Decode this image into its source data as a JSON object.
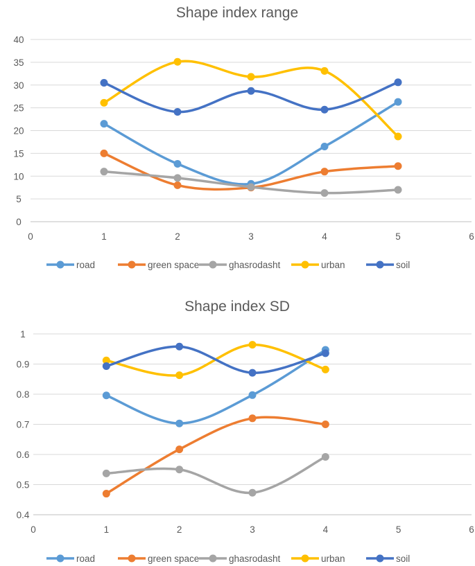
{
  "chart_data": [
    {
      "type": "scatter",
      "title": "Shape index range",
      "xlabel": "",
      "ylabel": "",
      "xlim": [
        0,
        6
      ],
      "ylim": [
        0,
        40
      ],
      "x_ticks": [
        0,
        1,
        2,
        3,
        4,
        5,
        6
      ],
      "y_ticks": [
        0,
        5,
        10,
        15,
        20,
        25,
        30,
        35,
        40
      ],
      "grid": "horizontal",
      "legend": "bottom",
      "smooth_lines": true,
      "x": [
        1,
        2,
        3,
        4,
        5
      ],
      "series": [
        {
          "name": "road",
          "color": "#5b9bd5",
          "values": [
            21.5,
            12.7,
            8.3,
            16.5,
            26.3
          ]
        },
        {
          "name": "green space",
          "color": "#ed7d31",
          "values": [
            15.0,
            8.0,
            7.5,
            11.0,
            12.2
          ]
        },
        {
          "name": "ghasrodasht",
          "color": "#a5a5a5",
          "values": [
            11.0,
            9.6,
            7.6,
            6.3,
            7.0
          ]
        },
        {
          "name": "urban",
          "color": "#ffc000",
          "values": [
            26.1,
            35.1,
            31.8,
            33.1,
            18.7
          ]
        },
        {
          "name": "soil",
          "color": "#4472c4",
          "values": [
            30.5,
            24.1,
            28.7,
            24.6,
            30.6
          ]
        }
      ]
    },
    {
      "type": "scatter",
      "title": "Shape index SD",
      "xlabel": "",
      "ylabel": "",
      "xlim": [
        0,
        6
      ],
      "ylim": [
        0.4,
        1
      ],
      "x_ticks": [
        0,
        1,
        2,
        3,
        4,
        5,
        6
      ],
      "y_ticks": [
        0.4,
        0.5,
        0.6,
        0.7,
        0.8,
        0.9,
        1
      ],
      "grid": "horizontal",
      "legend": "bottom",
      "smooth_lines": true,
      "x": [
        1,
        2,
        3,
        4
      ],
      "series": [
        {
          "name": "road",
          "color": "#5b9bd5",
          "values": [
            0.796,
            0.703,
            0.797,
            0.947
          ]
        },
        {
          "name": "green space",
          "color": "#ed7d31",
          "values": [
            0.47,
            0.617,
            0.72,
            0.7
          ]
        },
        {
          "name": "ghasrodasht",
          "color": "#a5a5a5",
          "values": [
            0.537,
            0.55,
            0.473,
            0.592
          ]
        },
        {
          "name": "urban",
          "color": "#ffc000",
          "values": [
            0.912,
            0.863,
            0.964,
            0.882
          ]
        },
        {
          "name": "soil",
          "color": "#4472c4",
          "values": [
            0.893,
            0.958,
            0.871,
            0.936
          ]
        }
      ]
    }
  ]
}
